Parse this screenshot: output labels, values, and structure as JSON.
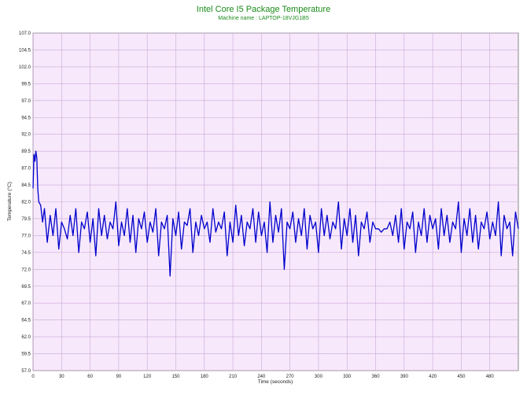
{
  "chart_data": {
    "type": "line",
    "title": "Intel Core I5 Package Temperature",
    "subtitle": "Machine name : LAPTOP-18VJG1B5",
    "xlabel": "Time (seconds)",
    "ylabel": "Temperature (°C)",
    "xlim": [
      0,
      510
    ],
    "ylim": [
      57.0,
      107.0
    ],
    "x_ticks": [
      0,
      30,
      60,
      90,
      120,
      150,
      180,
      210,
      240,
      270,
      300,
      330,
      360,
      390,
      420,
      450,
      480
    ],
    "y_ticks": [
      "107.0",
      "104.5",
      "102.0",
      "99.5",
      "97.0",
      "94.5",
      "92.0",
      "89.5",
      "87.0",
      "84.5",
      "82.0",
      "79.5",
      "77.0",
      "74.5",
      "72.0",
      "69.5",
      "67.0",
      "64.5",
      "62.0",
      "59.5",
      "57.0"
    ],
    "grid": true,
    "series": [
      {
        "color": "#0000cc",
        "x": [
          0,
          1,
          2,
          3,
          4,
          5,
          6,
          8,
          10,
          12,
          15,
          18,
          21,
          24,
          27,
          30,
          33,
          36,
          39,
          42,
          45,
          48,
          51,
          54,
          57,
          60,
          63,
          66,
          69,
          72,
          75,
          78,
          81,
          84,
          87,
          90,
          93,
          96,
          99,
          102,
          105,
          108,
          111,
          114,
          117,
          120,
          123,
          126,
          129,
          132,
          135,
          138,
          141,
          144,
          147,
          150,
          153,
          156,
          159,
          162,
          165,
          168,
          171,
          174,
          177,
          180,
          183,
          186,
          189,
          192,
          195,
          198,
          201,
          204,
          207,
          210,
          213,
          216,
          219,
          222,
          225,
          228,
          231,
          234,
          237,
          240,
          243,
          246,
          249,
          252,
          255,
          258,
          261,
          264,
          267,
          270,
          273,
          276,
          279,
          282,
          285,
          288,
          291,
          294,
          297,
          300,
          303,
          306,
          309,
          312,
          315,
          318,
          321,
          324,
          327,
          330,
          333,
          336,
          339,
          342,
          345,
          348,
          351,
          354,
          357,
          360,
          363,
          366,
          369,
          372,
          375,
          378,
          381,
          384,
          387,
          390,
          393,
          396,
          399,
          402,
          405,
          408,
          411,
          414,
          417,
          420,
          423,
          426,
          429,
          432,
          435,
          438,
          441,
          444,
          447,
          450,
          453,
          456,
          459,
          462,
          465,
          468,
          471,
          474,
          477,
          480,
          483,
          486,
          489,
          492,
          495,
          498,
          501,
          504,
          507,
          510
        ],
        "values": [
          84.0,
          89.0,
          88.0,
          89.5,
          88.5,
          84.0,
          82.0,
          81.5,
          79.0,
          81.0,
          76.0,
          80.0,
          77.0,
          81.0,
          75.0,
          79.0,
          78.0,
          76.5,
          80.0,
          77.0,
          81.0,
          74.5,
          79.0,
          78.0,
          80.5,
          76.0,
          79.5,
          74.0,
          81.0,
          77.0,
          80.0,
          76.5,
          79.0,
          78.0,
          82.0,
          75.5,
          79.0,
          77.0,
          81.0,
          76.0,
          80.0,
          74.5,
          79.5,
          78.0,
          80.5,
          76.0,
          79.0,
          77.5,
          81.0,
          74.0,
          79.0,
          78.0,
          80.0,
          71.0,
          79.5,
          77.0,
          80.5,
          75.0,
          79.0,
          78.5,
          81.0,
          74.5,
          79.0,
          77.0,
          80.0,
          78.0,
          79.0,
          76.0,
          81.0,
          77.5,
          79.0,
          78.0,
          80.5,
          74.0,
          79.0,
          76.0,
          81.5,
          77.0,
          80.0,
          75.5,
          79.0,
          78.0,
          81.0,
          76.0,
          80.5,
          77.0,
          79.0,
          74.5,
          82.0,
          76.0,
          80.0,
          77.5,
          81.0,
          72.0,
          79.0,
          78.0,
          80.5,
          76.0,
          79.5,
          77.0,
          81.0,
          75.0,
          80.0,
          78.0,
          79.0,
          74.5,
          81.0,
          77.0,
          80.0,
          76.5,
          79.0,
          78.0,
          82.0,
          75.0,
          79.5,
          77.0,
          81.0,
          76.0,
          80.0,
          74.0,
          79.0,
          78.0,
          80.5,
          76.0,
          79.0,
          78.0,
          78.0,
          77.5,
          78.0,
          78.0,
          79.0,
          77.0,
          80.0,
          76.0,
          81.0,
          75.0,
          79.0,
          78.0,
          80.5,
          74.5,
          79.0,
          77.0,
          81.0,
          76.0,
          80.0,
          78.0,
          79.5,
          75.0,
          81.0,
          77.0,
          80.0,
          76.0,
          79.0,
          78.0,
          82.0,
          74.5,
          79.5,
          77.0,
          81.0,
          76.0,
          80.0,
          75.0,
          79.0,
          78.0,
          80.5,
          76.5,
          79.0,
          77.0,
          82.0,
          74.0,
          80.0,
          78.0,
          79.0,
          74.0,
          80.5,
          78.0
        ]
      }
    ]
  }
}
